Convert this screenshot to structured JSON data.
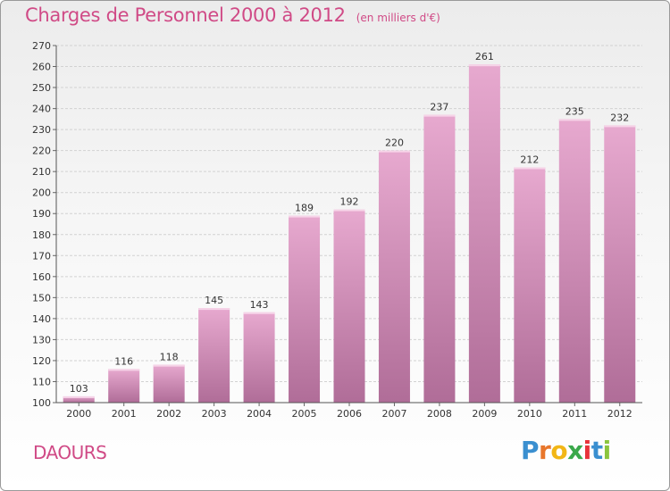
{
  "header": {
    "title": "Charges de Personnel 2000 à 2012",
    "subtitle": "(en milliers d'€)"
  },
  "commune": "DAOURS",
  "logo": {
    "letters": [
      "P",
      "r",
      "o",
      "x",
      "i",
      "t",
      "i"
    ],
    "colors": [
      "#3a8fd0",
      "#e8762b",
      "#f2b616",
      "#3aa84a",
      "#e8333a",
      "#3a8fd0",
      "#8bc53f"
    ]
  },
  "colors": {
    "accent": "#d04a86",
    "bar_top": "#e7a9cf",
    "bar_bottom": "#b06d98"
  },
  "chart_data": {
    "type": "bar",
    "title": "Charges de Personnel 2000 à 2012",
    "subtitle": "(en milliers d'€)",
    "categories": [
      "2000",
      "2001",
      "2002",
      "2003",
      "2004",
      "2005",
      "2006",
      "2007",
      "2008",
      "2009",
      "2010",
      "2011",
      "2012"
    ],
    "values": [
      103,
      116,
      118,
      145,
      143,
      189,
      192,
      220,
      237,
      261,
      212,
      235,
      232
    ],
    "ylim": [
      100,
      270
    ],
    "yticks": [
      100,
      110,
      120,
      130,
      140,
      150,
      160,
      170,
      180,
      190,
      200,
      210,
      220,
      230,
      240,
      250,
      260,
      270
    ],
    "grid": true,
    "data_labels": true
  }
}
